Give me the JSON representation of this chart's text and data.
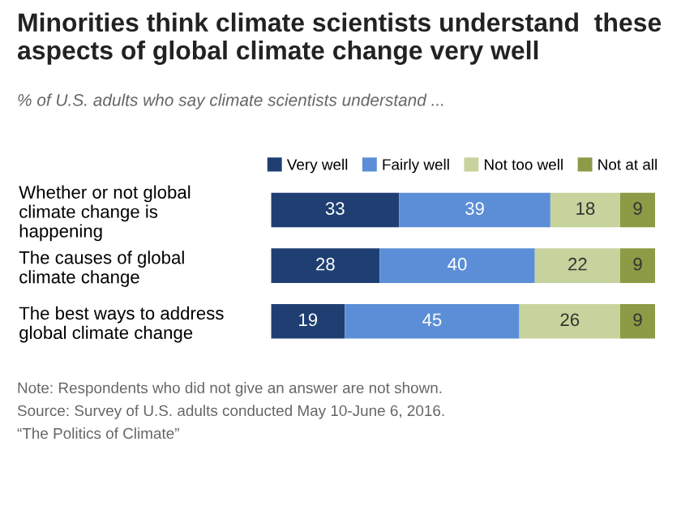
{
  "chart_data": {
    "type": "bar",
    "orientation": "horizontal",
    "stacked": true,
    "data_labels": true,
    "legend": "top",
    "grid": false,
    "title": "Minorities think climate scientists understand  these aspects of global climate change very well",
    "subtitle": "% of U.S. adults who say climate scientists understand ...",
    "categories": [
      "Whether or not global climate change is happening",
      "The causes of global climate change",
      "The best ways to address global climate change"
    ],
    "series": [
      {
        "name": "Very well",
        "color": "#1f3f73",
        "values": [
          33,
          28,
          19
        ]
      },
      {
        "name": "Fairly well",
        "color": "#5b8ed6",
        "values": [
          39,
          40,
          45
        ]
      },
      {
        "name": "Not too well",
        "color": "#c7d39c",
        "values": [
          18,
          22,
          26
        ]
      },
      {
        "name": "Not at all",
        "color": "#8d9a46",
        "values": [
          9,
          9,
          9
        ]
      }
    ],
    "annotations": [
      "Note: Respondents who did not give an answer are not shown.",
      "Source: Survey of U.S. adults conducted May 10-June 6, 2016.",
      "“The Politics of Climate”"
    ]
  }
}
